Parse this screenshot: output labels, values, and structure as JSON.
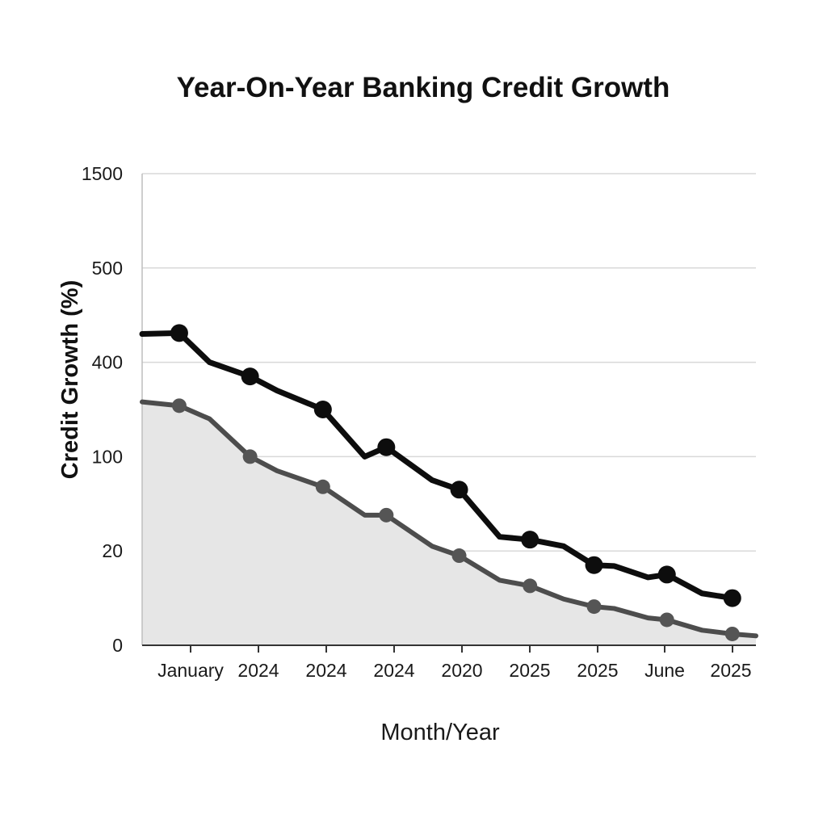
{
  "chart_data": {
    "type": "line",
    "title": "Year-On-Year Banking Credit Growth",
    "xlabel": "Month/Year",
    "ylabel": "Credit Growth (%)",
    "x_tick_labels": [
      "January",
      "2024",
      "2024",
      "2024",
      "2020",
      "2025",
      "2025",
      "June",
      "2025"
    ],
    "y_tick_labels": [
      "0",
      "20",
      "100",
      "400",
      "500",
      "1500"
    ],
    "grid": "horizontal",
    "legend": "none",
    "series": [
      {
        "color": "#0d0d0d",
        "marker_color": "#0d0d0d",
        "fill": false,
        "points": [
          {
            "x": 0.0,
            "y": 3.3,
            "marker": false
          },
          {
            "x": 0.55,
            "y": 3.31,
            "marker": true
          },
          {
            "x": 1.0,
            "y": 3.0,
            "marker": false
          },
          {
            "x": 1.6,
            "y": 2.85,
            "marker": true
          },
          {
            "x": 2.0,
            "y": 2.7,
            "marker": false
          },
          {
            "x": 2.68,
            "y": 2.5,
            "marker": true
          },
          {
            "x": 3.3,
            "y": 2.0,
            "marker": false
          },
          {
            "x": 3.62,
            "y": 2.1,
            "marker": true
          },
          {
            "x": 4.3,
            "y": 1.75,
            "marker": false
          },
          {
            "x": 4.7,
            "y": 1.65,
            "marker": true
          },
          {
            "x": 5.3,
            "y": 1.15,
            "marker": false
          },
          {
            "x": 5.75,
            "y": 1.12,
            "marker": true
          },
          {
            "x": 6.25,
            "y": 1.05,
            "marker": false
          },
          {
            "x": 6.7,
            "y": 0.85,
            "marker": true
          },
          {
            "x": 7.0,
            "y": 0.84,
            "marker": false
          },
          {
            "x": 7.5,
            "y": 0.72,
            "marker": false
          },
          {
            "x": 7.78,
            "y": 0.75,
            "marker": true
          },
          {
            "x": 8.3,
            "y": 0.55,
            "marker": false
          },
          {
            "x": 8.75,
            "y": 0.5,
            "marker": true
          }
        ]
      },
      {
        "color": "#4d4d4d",
        "marker_color": "#555555",
        "fill": true,
        "fill_color": "#e6e6e6",
        "points": [
          {
            "x": 0.0,
            "y": 2.58,
            "marker": false
          },
          {
            "x": 0.55,
            "y": 2.54,
            "marker": true
          },
          {
            "x": 1.0,
            "y": 2.4,
            "marker": false
          },
          {
            "x": 1.6,
            "y": 2.0,
            "marker": true
          },
          {
            "x": 2.0,
            "y": 1.85,
            "marker": false
          },
          {
            "x": 2.68,
            "y": 1.68,
            "marker": true
          },
          {
            "x": 3.3,
            "y": 1.38,
            "marker": false
          },
          {
            "x": 3.62,
            "y": 1.38,
            "marker": true
          },
          {
            "x": 4.3,
            "y": 1.05,
            "marker": false
          },
          {
            "x": 4.7,
            "y": 0.95,
            "marker": true
          },
          {
            "x": 5.3,
            "y": 0.69,
            "marker": false
          },
          {
            "x": 5.75,
            "y": 0.63,
            "marker": true
          },
          {
            "x": 6.25,
            "y": 0.49,
            "marker": false
          },
          {
            "x": 6.7,
            "y": 0.41,
            "marker": true
          },
          {
            "x": 7.0,
            "y": 0.39,
            "marker": false
          },
          {
            "x": 7.5,
            "y": 0.29,
            "marker": false
          },
          {
            "x": 7.78,
            "y": 0.27,
            "marker": true
          },
          {
            "x": 8.3,
            "y": 0.16,
            "marker": false
          },
          {
            "x": 8.75,
            "y": 0.12,
            "marker": true
          },
          {
            "x": 9.1,
            "y": 0.1,
            "marker": false
          }
        ]
      }
    ]
  }
}
